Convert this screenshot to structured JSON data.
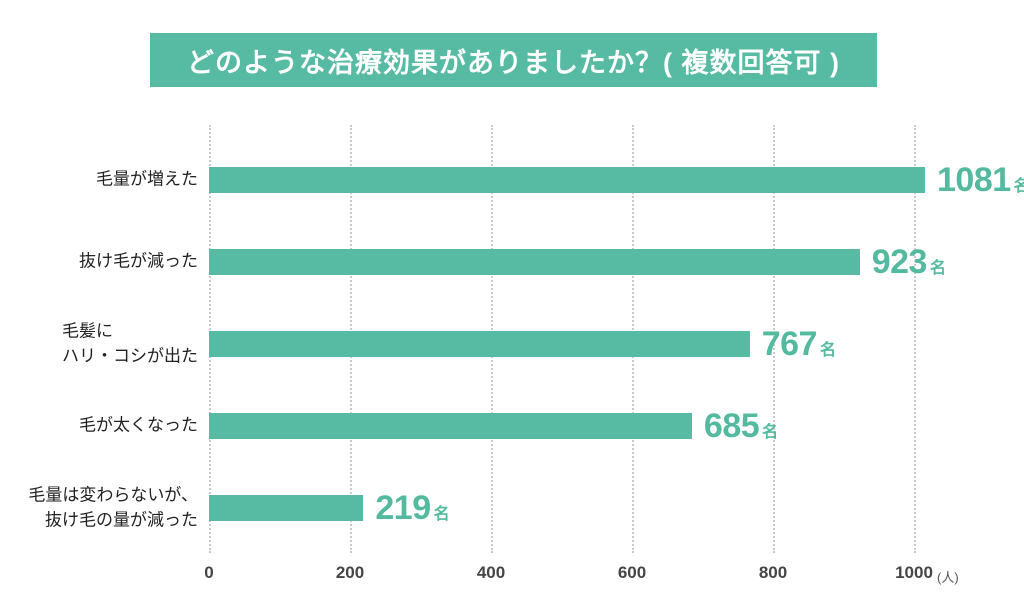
{
  "title": "どのような治療効果がありましたか？( 複数回答可 )",
  "chart_data": {
    "type": "bar",
    "orientation": "horizontal",
    "title": "どのような治療効果がありましたか？( 複数回答可 )",
    "categories": [
      "毛量が増えた",
      "抜け毛が減った",
      "毛髪に\nハリ・コシが出た",
      "毛が太くなった",
      "毛量は変わらないが、\n抜け毛の量が減った"
    ],
    "values": [
      1081,
      923,
      767,
      685,
      219
    ],
    "value_suffix": "名",
    "x_ticks": [
      "0",
      "200",
      "400",
      "600",
      "800",
      "1000"
    ],
    "x_axis_unit": "(人)",
    "xlim": [
      0,
      1020
    ],
    "grid": "dotted-vertical-gridlines",
    "legend": "none",
    "bar_color": "#56BBA2",
    "value_label_color": "#53BAA0",
    "banner_bg_color": "#56BBA2",
    "banner_text_color": "#FFFFFF"
  }
}
